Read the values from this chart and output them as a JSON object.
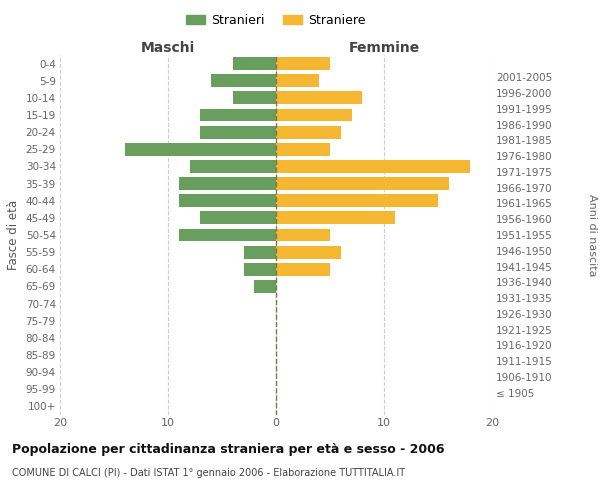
{
  "age_groups": [
    "100+",
    "95-99",
    "90-94",
    "85-89",
    "80-84",
    "75-79",
    "70-74",
    "65-69",
    "60-64",
    "55-59",
    "50-54",
    "45-49",
    "40-44",
    "35-39",
    "30-34",
    "25-29",
    "20-24",
    "15-19",
    "10-14",
    "5-9",
    "0-4"
  ],
  "birth_years": [
    "≤ 1905",
    "1906-1910",
    "1911-1915",
    "1916-1920",
    "1921-1925",
    "1926-1930",
    "1931-1935",
    "1936-1940",
    "1941-1945",
    "1946-1950",
    "1951-1955",
    "1956-1960",
    "1961-1965",
    "1966-1970",
    "1971-1975",
    "1976-1980",
    "1981-1985",
    "1986-1990",
    "1991-1995",
    "1996-2000",
    "2001-2005"
  ],
  "males": [
    0,
    0,
    0,
    0,
    0,
    0,
    0,
    2,
    3,
    3,
    9,
    7,
    9,
    9,
    8,
    14,
    7,
    7,
    4,
    6,
    4
  ],
  "females": [
    0,
    0,
    0,
    0,
    0,
    0,
    0,
    0,
    5,
    6,
    5,
    11,
    15,
    16,
    18,
    5,
    6,
    7,
    8,
    4,
    5
  ],
  "male_color": "#6a9e5e",
  "female_color": "#f5b731",
  "grid_color": "#cccccc",
  "center_line_color": "#7a7a50",
  "title": "Popolazione per cittadinanza straniera per età e sesso - 2006",
  "subtitle": "COMUNE DI CALCI (PI) - Dati ISTAT 1° gennaio 2006 - Elaborazione TUTTITALIA.IT",
  "ylabel_left": "Fasce di età",
  "ylabel_right": "Anni di nascita",
  "xlabel_left": "Maschi",
  "xlabel_right": "Femmine",
  "legend_male": "Stranieri",
  "legend_female": "Straniere",
  "xlim": 20,
  "background_color": "#ffffff"
}
